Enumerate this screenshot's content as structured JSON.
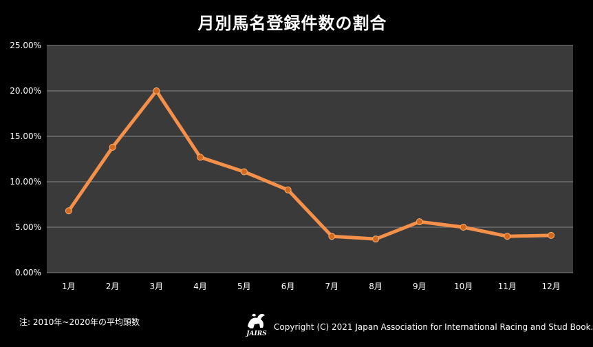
{
  "title": "月別馬名登録件数の割合",
  "note": "注: 2010年~2020年の平均頭数",
  "copyright": "Copyright (C) 2021  Japan Association for International Racing and Stud Book.",
  "logo_text": "JAIRS",
  "colors": {
    "plot_bg": "#3a3a3a",
    "line": "#f4904a",
    "marker": "#d2691e",
    "grid": "#8a8a8a"
  },
  "chart_data": {
    "type": "line",
    "title": "月別馬名登録件数の割合",
    "categories": [
      "1月",
      "2月",
      "3月",
      "4月",
      "5月",
      "6月",
      "7月",
      "8月",
      "9月",
      "10月",
      "11月",
      "12月"
    ],
    "series": [
      {
        "values": [
          6.8,
          13.8,
          20.0,
          12.7,
          11.1,
          9.1,
          4.0,
          3.7,
          5.6,
          5.0,
          4.0,
          4.1
        ]
      }
    ],
    "ylim": [
      0,
      25
    ],
    "yticks": [
      "0.00%",
      "5.00%",
      "10.00%",
      "15.00%",
      "20.00%",
      "25.00%"
    ],
    "grid": true,
    "legend": "none"
  }
}
